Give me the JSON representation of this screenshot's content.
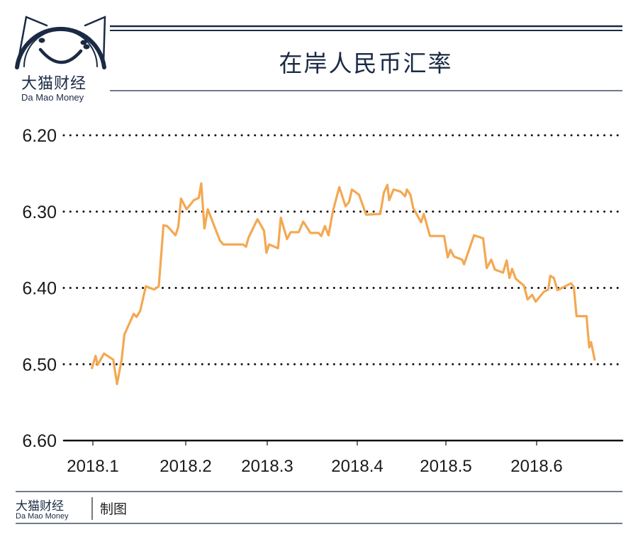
{
  "brand": {
    "name_cn": "大猫财经",
    "name_en": "Da Mao Money",
    "navy": "#1b2a44"
  },
  "footer": {
    "brand_cn": "大猫财经",
    "brand_en": "Da Mao Money",
    "note": "制图"
  },
  "chart_data": {
    "type": "line",
    "title": "在岸人民币汇率",
    "xlabel": "",
    "ylabel": "",
    "y_inverted": true,
    "ylim": [
      6.2,
      6.6
    ],
    "yticks": [
      6.2,
      6.3,
      6.4,
      6.5,
      6.6
    ],
    "ytick_labels": [
      "6.20",
      "6.30",
      "6.40",
      "6.50",
      "6.60"
    ],
    "xticks": [
      1,
      2,
      3,
      4,
      5,
      6
    ],
    "xtick_labels": [
      "2018.1",
      "2018.2",
      "2018.3",
      "2018.4",
      "2018.5",
      "2018.6"
    ],
    "grid": "horizontal-dotted",
    "line_color": "#f4a852",
    "series": [
      {
        "name": "在岸人民币汇率",
        "x": [
          0.99,
          1.03,
          1.05,
          1.12,
          1.22,
          1.26,
          1.31,
          1.34,
          1.44,
          1.47,
          1.51,
          1.57,
          1.66,
          1.71,
          1.76,
          1.8,
          1.89,
          1.92,
          1.95,
          2.01,
          2.1,
          2.16,
          2.19,
          2.23,
          2.27,
          2.42,
          2.46,
          2.7,
          2.74,
          2.77,
          2.88,
          2.96,
          2.99,
          3.02,
          3.12,
          3.15,
          3.22,
          3.26,
          3.35,
          3.4,
          3.48,
          3.57,
          3.6,
          3.64,
          3.68,
          3.73,
          3.8,
          3.87,
          3.91,
          3.94,
          4.02,
          4.1,
          4.26,
          4.3,
          4.34,
          4.36,
          4.41,
          4.49,
          4.54,
          4.56,
          4.6,
          4.63,
          4.72,
          4.75,
          4.82,
          4.98,
          5.02,
          5.05,
          5.09,
          5.18,
          5.2,
          5.31,
          5.41,
          5.45,
          5.5,
          5.54,
          5.63,
          5.67,
          5.7,
          5.73,
          5.77,
          5.86,
          5.9,
          5.95,
          5.99,
          6.08,
          6.13,
          6.15,
          6.19,
          6.23,
          6.38,
          6.41,
          6.44,
          6.55,
          6.58,
          6.6,
          6.64
        ],
        "values": [
          6.505,
          6.489,
          6.501,
          6.486,
          6.494,
          6.526,
          6.494,
          6.461,
          6.434,
          6.438,
          6.43,
          6.398,
          6.402,
          6.398,
          6.318,
          6.319,
          6.331,
          6.32,
          6.283,
          6.297,
          6.285,
          6.282,
          6.263,
          6.322,
          6.297,
          6.338,
          6.343,
          6.343,
          6.346,
          6.334,
          6.31,
          6.325,
          6.354,
          6.343,
          6.348,
          6.308,
          6.336,
          6.327,
          6.327,
          6.313,
          6.328,
          6.328,
          6.332,
          6.319,
          6.331,
          6.299,
          6.268,
          6.293,
          6.287,
          6.271,
          6.278,
          6.304,
          6.303,
          6.275,
          6.265,
          6.285,
          6.271,
          6.274,
          6.28,
          6.271,
          6.278,
          6.295,
          6.314,
          6.303,
          6.332,
          6.332,
          6.36,
          6.35,
          6.359,
          6.363,
          6.369,
          6.331,
          6.335,
          6.374,
          6.363,
          6.376,
          6.38,
          6.364,
          6.387,
          6.375,
          6.388,
          6.397,
          6.415,
          6.409,
          6.418,
          6.405,
          6.402,
          6.384,
          6.387,
          6.403,
          6.394,
          6.399,
          6.437,
          6.437,
          6.478,
          6.471,
          6.494
        ]
      }
    ]
  }
}
